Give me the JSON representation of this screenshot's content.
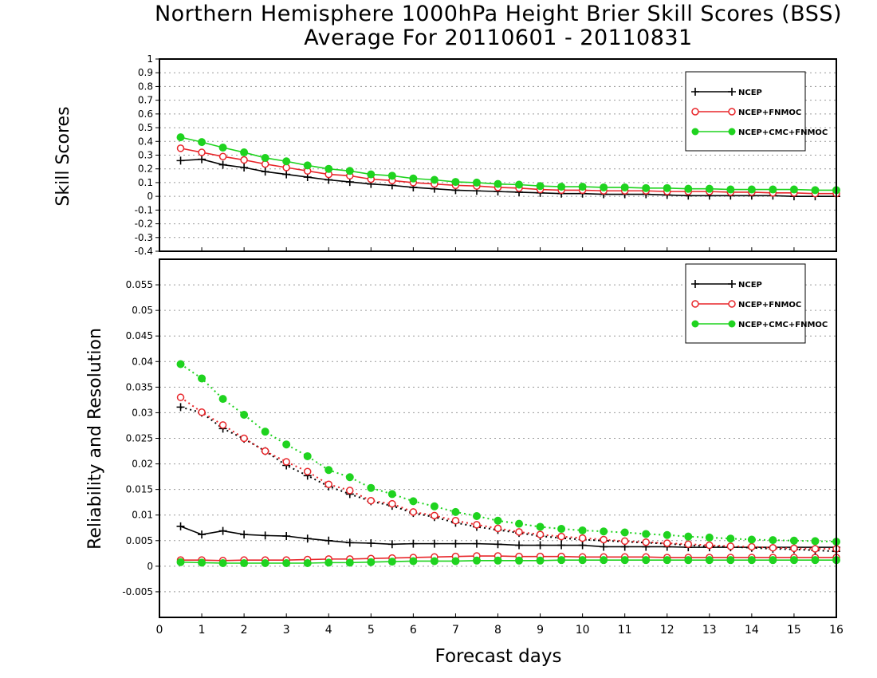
{
  "title_line1": "Northern Hemisphere 1000hPa Height Brier Skill Scores (BSS)",
  "title_line2": "Average For 20110601 - 20110831",
  "xlabel": "Forecast days",
  "colors": {
    "ncep": "#000000",
    "ncep_fnmoc": "#e8262a",
    "ncep_cmc_fnmoc": "#1fd31f",
    "grid": "#9a9a9a"
  },
  "chart_data": [
    {
      "type": "line",
      "ylabel": "Skill Scores",
      "ylim": [
        -0.4,
        1
      ],
      "xlim": [
        0,
        16
      ],
      "grid": true,
      "legend": "top-right",
      "x_ticks": [
        "0",
        "1",
        "2",
        "3",
        "4",
        "5",
        "6",
        "7",
        "8",
        "9",
        "10",
        "11",
        "12",
        "13",
        "14",
        "15",
        "16"
      ],
      "y_ticks": [
        "-0.4",
        "-0.3",
        "-0.2",
        "-0.1",
        "0",
        "0.1",
        "0.2",
        "0.3",
        "0.4",
        "0.5",
        "0.6",
        "0.7",
        "0.8",
        "0.9",
        "1"
      ],
      "x": [
        0.5,
        1,
        1.5,
        2,
        2.5,
        3,
        3.5,
        4,
        4.5,
        5,
        5.5,
        6,
        6.5,
        7,
        7.5,
        8,
        8.5,
        9,
        9.5,
        10,
        10.5,
        11,
        11.5,
        12,
        12.5,
        13,
        13.5,
        14,
        14.5,
        15,
        15.5,
        16
      ],
      "series": [
        {
          "name": "NCEP",
          "style": "solid",
          "marker": "plus",
          "values": [
            0.26,
            0.27,
            0.23,
            0.21,
            0.18,
            0.16,
            0.14,
            0.12,
            0.105,
            0.09,
            0.08,
            0.065,
            0.055,
            0.045,
            0.04,
            0.035,
            0.03,
            0.025,
            0.02,
            0.02,
            0.015,
            0.015,
            0.015,
            0.01,
            0.005,
            0.005,
            0.005,
            0.005,
            0.005,
            0.0,
            0.0,
            0.0
          ]
        },
        {
          "name": "NCEP+FNMOC",
          "style": "solid",
          "marker": "open-circle",
          "values": [
            0.35,
            0.32,
            0.29,
            0.265,
            0.235,
            0.21,
            0.185,
            0.16,
            0.15,
            0.125,
            0.115,
            0.1,
            0.09,
            0.08,
            0.075,
            0.065,
            0.06,
            0.05,
            0.045,
            0.045,
            0.04,
            0.04,
            0.04,
            0.035,
            0.035,
            0.035,
            0.03,
            0.03,
            0.025,
            0.025,
            0.02,
            0.02
          ]
        },
        {
          "name": "NCEP+CMC+FNMOC",
          "style": "solid",
          "marker": "filled-circle",
          "values": [
            0.43,
            0.395,
            0.355,
            0.32,
            0.28,
            0.255,
            0.225,
            0.2,
            0.185,
            0.16,
            0.15,
            0.13,
            0.12,
            0.105,
            0.1,
            0.09,
            0.085,
            0.075,
            0.07,
            0.07,
            0.065,
            0.065,
            0.06,
            0.06,
            0.055,
            0.055,
            0.05,
            0.05,
            0.05,
            0.05,
            0.045,
            0.045
          ]
        }
      ]
    },
    {
      "type": "line",
      "ylabel": "Reliability and Resolution",
      "ylim": [
        -0.01,
        0.06
      ],
      "xlim": [
        0,
        16
      ],
      "grid": true,
      "legend": "top-right",
      "x_ticks": [
        "0",
        "1",
        "2",
        "3",
        "4",
        "5",
        "6",
        "7",
        "8",
        "9",
        "10",
        "11",
        "12",
        "13",
        "14",
        "15",
        "16"
      ],
      "y_ticks": [
        "-0.005",
        "0",
        "0.005",
        "0.01",
        "0.015",
        "0.02",
        "0.025",
        "0.03",
        "0.035",
        "0.04",
        "0.045",
        "0.05",
        "0.055"
      ],
      "x": [
        0.5,
        1,
        1.5,
        2,
        2.5,
        3,
        3.5,
        4,
        4.5,
        5,
        5.5,
        6,
        6.5,
        7,
        7.5,
        8,
        8.5,
        9,
        9.5,
        10,
        10.5,
        11,
        11.5,
        12,
        12.5,
        13,
        13.5,
        14,
        14.5,
        15,
        15.5,
        16
      ],
      "series": [
        {
          "name": "NCEP",
          "kind": "reliability",
          "style": "solid",
          "marker": "plus",
          "values": [
            0.0078,
            0.0062,
            0.0069,
            0.0062,
            0.006,
            0.0059,
            0.0054,
            0.005,
            0.0046,
            0.0045,
            0.0043,
            0.0044,
            0.0044,
            0.0044,
            0.0044,
            0.0043,
            0.0041,
            0.0041,
            0.0041,
            0.0041,
            0.0038,
            0.0038,
            0.0038,
            0.0038,
            0.0037,
            0.0037,
            0.0037,
            0.0037,
            0.0037,
            0.0037,
            0.0037,
            0.0037
          ]
        },
        {
          "name": "NCEP+FNMOC",
          "kind": "reliability",
          "style": "solid",
          "marker": "open-circle",
          "values": [
            0.0012,
            0.0012,
            0.0011,
            0.0012,
            0.0012,
            0.0012,
            0.0013,
            0.0014,
            0.0014,
            0.0015,
            0.0016,
            0.0017,
            0.0018,
            0.0019,
            0.002,
            0.002,
            0.0019,
            0.0019,
            0.0019,
            0.0018,
            0.0018,
            0.0018,
            0.0018,
            0.0017,
            0.0017,
            0.0017,
            0.0017,
            0.0017,
            0.0017,
            0.0017,
            0.0017,
            0.0017
          ]
        },
        {
          "name": "NCEP+CMC+FNMOC",
          "kind": "reliability",
          "style": "solid",
          "marker": "filled-circle",
          "values": [
            0.0008,
            0.0007,
            0.0006,
            0.0006,
            0.0006,
            0.0006,
            0.0006,
            0.0007,
            0.0007,
            0.0008,
            0.0009,
            0.001,
            0.001,
            0.001,
            0.0011,
            0.0011,
            0.0011,
            0.0011,
            0.0012,
            0.0012,
            0.0012,
            0.0012,
            0.0012,
            0.0012,
            0.0012,
            0.0012,
            0.0012,
            0.0012,
            0.0012,
            0.0012,
            0.0012,
            0.0012
          ]
        },
        {
          "name": "NCEP",
          "kind": "resolution",
          "style": "dotted",
          "marker": "plus",
          "values": [
            0.0311,
            0.03,
            0.0269,
            0.0249,
            0.0225,
            0.0197,
            0.0177,
            0.0156,
            0.0141,
            0.0127,
            0.0118,
            0.0104,
            0.0096,
            0.0085,
            0.0077,
            0.0071,
            0.0065,
            0.0059,
            0.0055,
            0.0052,
            0.005,
            0.0048,
            0.0046,
            0.0044,
            0.0041,
            0.0039,
            0.0038,
            0.0036,
            0.0034,
            0.0033,
            0.0031,
            0.0029
          ]
        },
        {
          "name": "NCEP+FNMOC",
          "kind": "resolution",
          "style": "dotted",
          "marker": "open-circle",
          "values": [
            0.033,
            0.0301,
            0.0276,
            0.025,
            0.0225,
            0.0204,
            0.0185,
            0.016,
            0.0148,
            0.0128,
            0.0122,
            0.0106,
            0.0099,
            0.0089,
            0.0081,
            0.0074,
            0.0067,
            0.0062,
            0.0058,
            0.0055,
            0.0052,
            0.0049,
            0.0047,
            0.0045,
            0.0043,
            0.0041,
            0.0039,
            0.0038,
            0.0036,
            0.0035,
            0.0034,
            0.0034
          ]
        },
        {
          "name": "NCEP+CMC+FNMOC",
          "kind": "resolution",
          "style": "dotted",
          "marker": "filled-circle",
          "values": [
            0.0395,
            0.0367,
            0.0327,
            0.0296,
            0.0263,
            0.0238,
            0.0215,
            0.0188,
            0.0174,
            0.0153,
            0.0141,
            0.0127,
            0.0117,
            0.0106,
            0.0098,
            0.0089,
            0.0083,
            0.0077,
            0.0073,
            0.007,
            0.0068,
            0.0066,
            0.0063,
            0.0061,
            0.0058,
            0.0056,
            0.0054,
            0.0052,
            0.0051,
            0.005,
            0.0049,
            0.0048
          ]
        }
      ]
    }
  ]
}
